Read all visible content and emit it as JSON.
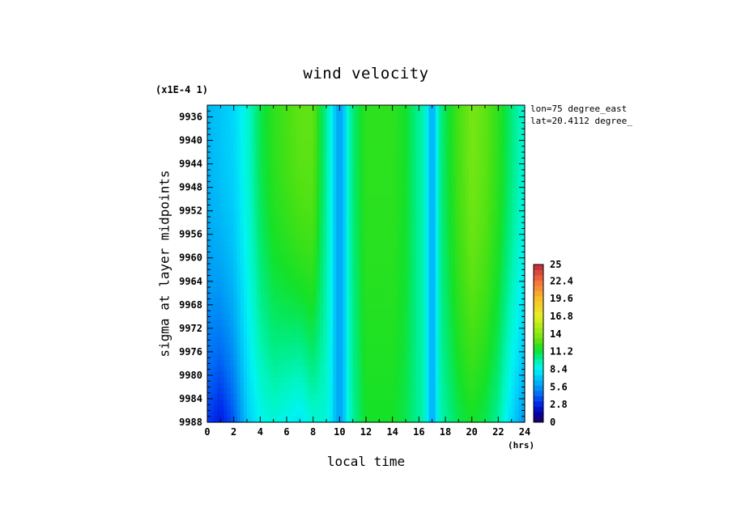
{
  "chart_data": {
    "type": "heatmap",
    "title": "wind velocity",
    "xlabel": "local time",
    "xunit": "(hrs)",
    "ylabel": "sigma at layer midpoints",
    "yscale_note": "(x1E-4 1)",
    "annotations": [
      "lon=75 degree_east",
      "lat=20.4112 degree_"
    ],
    "xlim": [
      0,
      24
    ],
    "ylim": [
      9988,
      9934
    ],
    "x_ticks": [
      0,
      2,
      4,
      6,
      8,
      10,
      12,
      14,
      16,
      18,
      20,
      22,
      24
    ],
    "y_ticks": [
      9936,
      9940,
      9944,
      9948,
      9952,
      9956,
      9960,
      9964,
      9968,
      9972,
      9976,
      9980,
      9984,
      9988
    ],
    "colorbar": {
      "range": [
        0,
        25
      ],
      "tick_labels": [
        "0",
        "2.8",
        "5.6",
        "8.4",
        "11.2",
        "14",
        "16.8",
        "19.6",
        "22.4",
        "25"
      ]
    },
    "x": [
      0,
      1,
      2,
      3,
      4,
      5,
      6,
      7,
      8,
      9,
      10,
      11,
      12,
      13,
      14,
      15,
      16,
      17,
      18,
      19,
      20,
      21,
      22,
      23,
      24
    ],
    "y_top_values": [
      6.5,
      7,
      7.5,
      9,
      11,
      12,
      12.5,
      13,
      13,
      10,
      6.5,
      10.5,
      12,
      12,
      12,
      11.5,
      10,
      9,
      11,
      12.5,
      13.5,
      13,
      12,
      10.5,
      9
    ],
    "y_bottom_values": [
      3.5,
      2.5,
      4,
      7,
      8.5,
      9,
      8.5,
      8,
      9,
      9,
      6.5,
      10,
      11.5,
      11.5,
      11.5,
      11,
      10,
      9,
      10,
      11,
      11.5,
      11,
      10,
      7.5,
      5.5
    ],
    "dip_times": [
      10,
      17
    ],
    "dip_value": 6
  }
}
